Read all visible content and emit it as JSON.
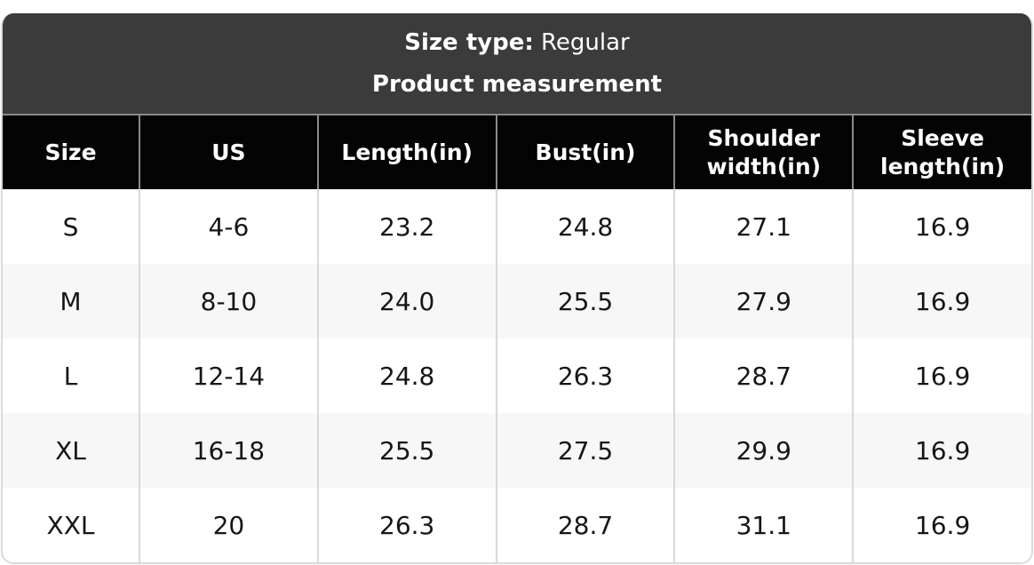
{
  "header": {
    "size_type_label": "Size type:",
    "size_type_value": "Regular",
    "subtitle": "Product measurement"
  },
  "chart_data": {
    "type": "table",
    "title": "Product measurement",
    "size_type": "Regular",
    "columns": [
      "Size",
      "US",
      "Length(in)",
      "Bust(in)",
      "Shoulder width(in)",
      "Sleeve length(in)"
    ],
    "rows": [
      [
        "S",
        "4-6",
        "23.2",
        "24.8",
        "27.1",
        "16.9"
      ],
      [
        "M",
        "8-10",
        "24.0",
        "25.5",
        "27.9",
        "16.9"
      ],
      [
        "L",
        "12-14",
        "24.8",
        "26.3",
        "28.7",
        "16.9"
      ],
      [
        "XL",
        "16-18",
        "25.5",
        "27.5",
        "29.9",
        "16.9"
      ],
      [
        "XXL",
        "20",
        "26.3",
        "28.7",
        "31.1",
        "16.9"
      ]
    ]
  },
  "colors": {
    "band_bg": "#3b3b3b",
    "header_bg": "#040404",
    "header_text": "#ffffff",
    "zebra": "#f7f7f7",
    "header_divider": "#8a8a8a",
    "body_divider": "#d9d9d9",
    "cell_text": "#161616"
  }
}
